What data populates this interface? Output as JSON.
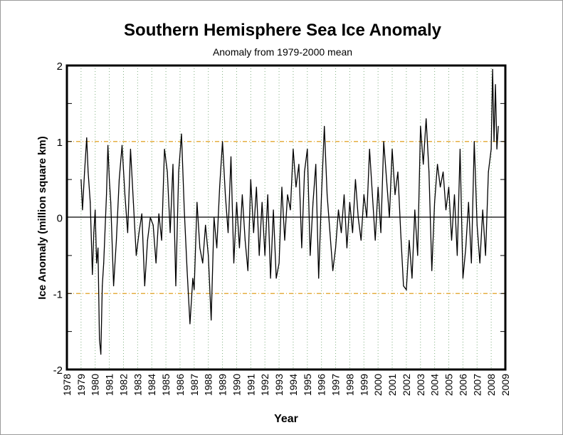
{
  "chart_data": {
    "type": "line",
    "title": "Southern Hemisphere Sea Ice Anomaly",
    "subtitle": "Anomaly from 1979-2000 mean",
    "xlabel": "Year",
    "ylabel": "Ice Anomaly (million square km)",
    "xlim": [
      1978,
      2009
    ],
    "ylim": [
      -2,
      2
    ],
    "x_ticks": [
      "1978",
      "1979",
      "1980",
      "1981",
      "1982",
      "1983",
      "1984",
      "1985",
      "1986",
      "1987",
      "1988",
      "1989",
      "1990",
      "1991",
      "1992",
      "1993",
      "1994",
      "1995",
      "1996",
      "1997",
      "1998",
      "1999",
      "2000",
      "2001",
      "2002",
      "2003",
      "2004",
      "2005",
      "2006",
      "2007",
      "2008",
      "2009"
    ],
    "y_ticks": [
      "2",
      "1",
      "0",
      "-1",
      "-2"
    ],
    "reference_lines": [
      1,
      -1
    ],
    "grid": "vertical dotted at each year",
    "colors": {
      "series": "#000000",
      "reference": "#e0a020",
      "grid": "#7fae7f"
    },
    "series": [
      {
        "name": "Ice Anomaly",
        "x": [
          1979.0,
          1979.1,
          1979.25,
          1979.4,
          1979.5,
          1979.65,
          1979.8,
          1979.9,
          1980.0,
          1980.1,
          1980.2,
          1980.3,
          1980.4,
          1980.5,
          1980.6,
          1980.8,
          1980.9,
          1981.0,
          1981.1,
          1981.3,
          1981.5,
          1981.7,
          1981.9,
          1982.1,
          1982.3,
          1982.5,
          1982.7,
          1982.9,
          1983.1,
          1983.3,
          1983.5,
          1983.7,
          1983.9,
          1984.1,
          1984.3,
          1984.5,
          1984.7,
          1984.9,
          1985.1,
          1985.3,
          1985.5,
          1985.7,
          1985.9,
          1986.1,
          1986.3,
          1986.5,
          1986.7,
          1986.9,
          1987.0,
          1987.2,
          1987.4,
          1987.6,
          1987.8,
          1988.0,
          1988.2,
          1988.4,
          1988.6,
          1988.8,
          1989.0,
          1989.2,
          1989.4,
          1989.6,
          1989.8,
          1990.0,
          1990.2,
          1990.4,
          1990.6,
          1990.8,
          1991.0,
          1991.2,
          1991.4,
          1991.6,
          1991.8,
          1992.0,
          1992.2,
          1992.4,
          1992.6,
          1992.8,
          1993.0,
          1993.2,
          1993.4,
          1993.6,
          1993.8,
          1994.0,
          1994.2,
          1994.4,
          1994.6,
          1994.8,
          1995.0,
          1995.2,
          1995.4,
          1995.6,
          1995.8,
          1996.0,
          1996.2,
          1996.4,
          1996.6,
          1996.8,
          1997.0,
          1997.2,
          1997.4,
          1997.6,
          1997.8,
          1998.0,
          1998.2,
          1998.4,
          1998.6,
          1998.8,
          1999.0,
          1999.2,
          1999.4,
          1999.6,
          1999.8,
          2000.0,
          2000.2,
          2000.4,
          2000.6,
          2000.8,
          2001.0,
          2001.2,
          2001.4,
          2001.6,
          2001.8,
          2002.0,
          2002.2,
          2002.4,
          2002.6,
          2002.8,
          2003.0,
          2003.2,
          2003.4,
          2003.6,
          2003.8,
          2004.0,
          2004.2,
          2004.4,
          2004.6,
          2004.8,
          2005.0,
          2005.2,
          2005.4,
          2005.6,
          2005.8,
          2006.0,
          2006.2,
          2006.4,
          2006.6,
          2006.8,
          2007.0,
          2007.2,
          2007.4,
          2007.6,
          2007.8,
          2008.0,
          2008.1,
          2008.2,
          2008.3,
          2008.4,
          2008.5
        ],
        "y": [
          0.5,
          0.1,
          0.6,
          1.05,
          0.6,
          0.2,
          -0.75,
          -0.2,
          0.1,
          -0.6,
          -0.4,
          -1.6,
          -1.8,
          -0.9,
          -0.6,
          0.3,
          0.95,
          0.5,
          0.2,
          -0.9,
          -0.3,
          0.5,
          0.95,
          0.3,
          -0.2,
          0.9,
          0.2,
          -0.5,
          -0.2,
          0.05,
          -0.9,
          -0.3,
          0.0,
          -0.1,
          -0.6,
          0.05,
          -0.3,
          0.9,
          0.6,
          -0.2,
          0.7,
          -0.9,
          0.6,
          1.1,
          0.1,
          -0.7,
          -1.4,
          -0.8,
          -0.95,
          0.2,
          -0.4,
          -0.6,
          -0.1,
          -0.5,
          -1.35,
          0.0,
          -0.4,
          0.4,
          1.0,
          0.3,
          -0.2,
          0.8,
          -0.6,
          0.2,
          -0.4,
          0.3,
          -0.3,
          -0.7,
          0.5,
          -0.2,
          0.4,
          -0.5,
          0.2,
          -0.5,
          0.3,
          -0.8,
          0.1,
          -0.8,
          -0.6,
          0.4,
          -0.3,
          0.3,
          0.1,
          0.9,
          0.4,
          0.7,
          -0.4,
          0.6,
          0.9,
          -0.5,
          0.2,
          0.7,
          -0.8,
          0.3,
          1.2,
          0.3,
          -0.2,
          -0.7,
          -0.4,
          0.1,
          -0.2,
          0.3,
          -0.4,
          0.2,
          -0.2,
          0.5,
          0.0,
          -0.3,
          0.3,
          0.0,
          0.9,
          0.3,
          -0.3,
          0.4,
          -0.2,
          1.0,
          0.5,
          0.0,
          0.9,
          0.3,
          0.6,
          -0.2,
          -0.9,
          -0.95,
          -0.3,
          -0.8,
          0.1,
          -0.5,
          1.2,
          0.7,
          1.3,
          0.6,
          -0.7,
          0.2,
          0.7,
          0.4,
          0.6,
          0.1,
          0.4,
          -0.3,
          0.3,
          -0.5,
          0.9,
          -0.8,
          -0.4,
          0.2,
          -0.6,
          1.0,
          -0.1,
          -0.6,
          0.1,
          -0.5,
          0.6,
          0.9,
          1.95,
          1.0,
          1.75,
          0.9,
          1.2
        ]
      }
    ]
  }
}
